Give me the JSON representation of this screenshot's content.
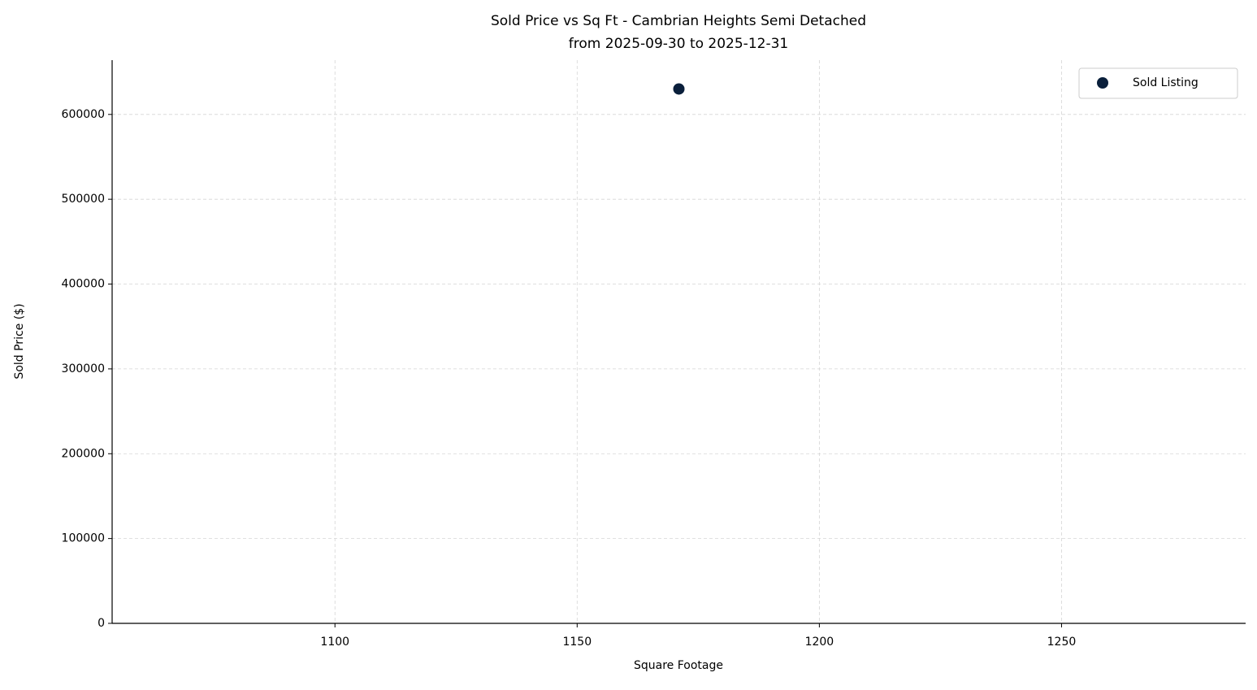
{
  "chart_data": {
    "type": "scatter",
    "title": "Sold Price vs Sq Ft - Cambrian Heights Semi Detached",
    "subtitle": "from 2025-09-30 to 2025-12-31",
    "x_label": "Square Footage",
    "y_label": "Sold Price ($)",
    "series": [
      {
        "name": "Sold Listing",
        "color": "#0a1f3b",
        "x": [
          1171
        ],
        "values": [
          630000
        ]
      }
    ],
    "xlim": [
      1054,
      1288
    ],
    "xticks": [
      1100,
      1150,
      1200,
      1250
    ],
    "ylim": [
      0,
      664000
    ],
    "yticks": [
      0,
      100000,
      200000,
      300000,
      400000,
      500000,
      600000
    ],
    "grid": true,
    "legend": "upper-right"
  }
}
